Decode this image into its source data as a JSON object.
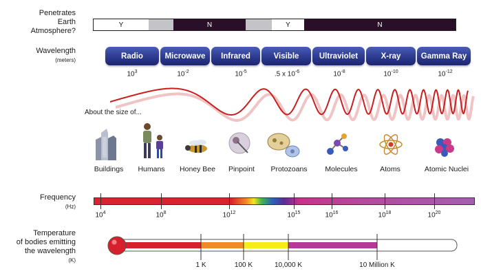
{
  "labels": {
    "atmosphere": [
      "Penetrates",
      "Earth",
      "Atmosphere?"
    ],
    "wavelength": "Wavelength",
    "wavelength_unit": "(meters)",
    "about_size": "About the size of...",
    "frequency": "Frequency",
    "frequency_unit": "(Hz)",
    "temperature": [
      "Temperature",
      "of bodies emitting",
      "the wavelength"
    ],
    "temperature_unit": "(K)"
  },
  "atmosphere_bar": [
    {
      "text": "Y",
      "color": "#ffffff"
    },
    {
      "text": "",
      "color": "#c4c4c8"
    },
    {
      "text": "N",
      "color": "#2a0f28"
    },
    {
      "text": "",
      "color": "#c4c4c8"
    },
    {
      "text": "Y",
      "color": "#ffffff"
    },
    {
      "text": "N",
      "color": "#2a0f28"
    }
  ],
  "bands": [
    {
      "name": "Radio",
      "wl_base": "10",
      "wl_exp": "3"
    },
    {
      "name": "Microwave",
      "wl_base": "10",
      "wl_exp": "-2"
    },
    {
      "name": "Infrared",
      "wl_base": "10",
      "wl_exp": "-5"
    },
    {
      "name": "Visible",
      "wl_base": ".5 x 10",
      "wl_exp": "-6"
    },
    {
      "name": "Ultraviolet",
      "wl_base": "10",
      "wl_exp": "-8"
    },
    {
      "name": "X-ray",
      "wl_base": "10",
      "wl_exp": "-10"
    },
    {
      "name": "Gamma Ray",
      "wl_base": "10",
      "wl_exp": "-12"
    }
  ],
  "objects": [
    {
      "name": "Buildings",
      "icon": "buildings-icon"
    },
    {
      "name": "Humans",
      "icon": "humans-icon"
    },
    {
      "name": "Honey Bee",
      "icon": "honey-bee-icon"
    },
    {
      "name": "Pinpoint",
      "icon": "pinpoint-icon"
    },
    {
      "name": "Protozoans",
      "icon": "protozoans-icon"
    },
    {
      "name": "Molecules",
      "icon": "molecules-icon"
    },
    {
      "name": "Atoms",
      "icon": "atom-icon"
    },
    {
      "name": "Atomic Nuclei",
      "icon": "atomic-nuclei-icon"
    }
  ],
  "frequency_ticks": [
    {
      "base": "10",
      "exp": "4"
    },
    {
      "base": "10",
      "exp": "8"
    },
    {
      "base": "10",
      "exp": "12"
    },
    {
      "base": "10",
      "exp": "15"
    },
    {
      "base": "10",
      "exp": "16"
    },
    {
      "base": "10",
      "exp": "18"
    },
    {
      "base": "10",
      "exp": "20"
    }
  ],
  "temperature_ticks": [
    "1 K",
    "100 K",
    "10,000 K",
    "10 Million K"
  ],
  "temperature_colors": [
    "#d6202c",
    "#f08a24",
    "#f5ec18",
    "#b53a98",
    "#ffffff"
  ],
  "colors": {
    "wave": "#c81e1e",
    "band_pill": "#2c3a8f"
  }
}
